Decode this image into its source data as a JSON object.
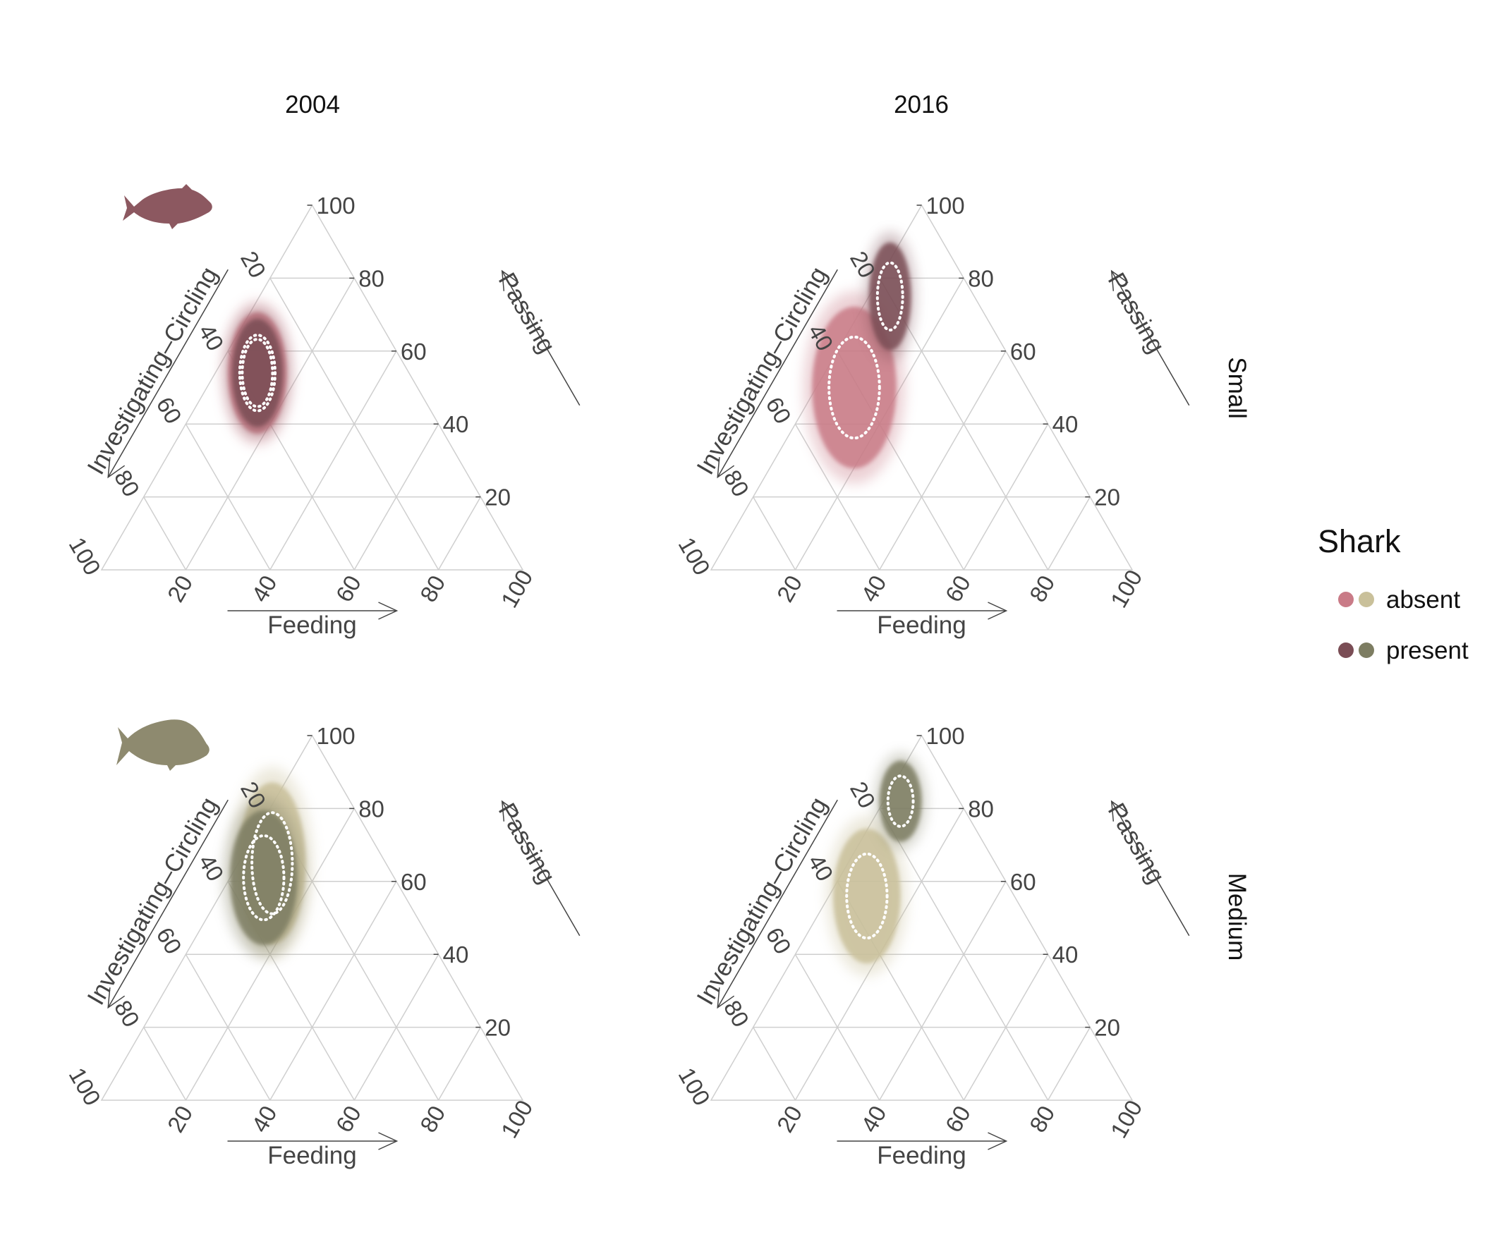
{
  "figure": {
    "col_titles": [
      "2004",
      "2016"
    ],
    "row_titles": [
      "Small",
      "Medium"
    ],
    "legend": {
      "title": "Shark",
      "entries": [
        {
          "label": "absent",
          "colors": [
            "#c97b87",
            "#c9c09a"
          ]
        },
        {
          "label": "present",
          "colors": [
            "#7a4d55",
            "#7d7d62"
          ]
        }
      ]
    },
    "fish_icons": [
      {
        "icon": "small-fish-silhouette-icon",
        "color": "#8c5860"
      },
      {
        "icon": "medium-fish-silhouette-icon",
        "color": "#8e8a6f"
      }
    ]
  },
  "chart_data": {
    "type": "ternary-density",
    "axes": {
      "top": {
        "label": "Passing",
        "ticks": [
          20,
          40,
          60,
          80,
          100
        ]
      },
      "left": {
        "label": "Investigating–Circling",
        "ticks": [
          20,
          40,
          60,
          80,
          100
        ]
      },
      "bottom": {
        "label": "Feeding",
        "ticks": [
          20,
          40,
          60,
          80,
          100
        ]
      }
    },
    "grid": true,
    "legend_position": "right",
    "panels": [
      {
        "year": "2004",
        "size": "Small",
        "series": [
          {
            "name": "absent",
            "color": "#c97b87",
            "center": {
              "Passing": 54,
              "Investigating–Circling": 36,
              "Feeding": 10
            },
            "spread": [
              3.5,
              9
            ]
          },
          {
            "name": "present",
            "color": "#7a4d55",
            "center": {
              "Passing": 54,
              "Investigating–Circling": 36,
              "Feeding": 10
            },
            "spread": [
              3,
              8
            ]
          }
        ]
      },
      {
        "year": "2016",
        "size": "Small",
        "series": [
          {
            "name": "absent",
            "color": "#c97b87",
            "center": {
              "Passing": 50,
              "Investigating–Circling": 41,
              "Feeding": 9
            },
            "spread": [
              5,
              12
            ]
          },
          {
            "name": "present",
            "color": "#7a4d55",
            "center": {
              "Passing": 75,
              "Investigating–Circling": 20,
              "Feeding": 5
            },
            "spread": [
              2.5,
              8
            ]
          }
        ]
      },
      {
        "year": "2004",
        "size": "Medium",
        "series": [
          {
            "name": "absent",
            "color": "#c9c09a",
            "center": {
              "Passing": 65,
              "Investigating–Circling": 27,
              "Feeding": 8
            },
            "spread": [
              4,
              12
            ]
          },
          {
            "name": "present",
            "color": "#7d7d62",
            "center": {
              "Passing": 61,
              "Investigating–Circling": 31,
              "Feeding": 8
            },
            "spread": [
              4,
              10
            ]
          }
        ]
      },
      {
        "year": "2016",
        "size": "Medium",
        "series": [
          {
            "name": "absent",
            "color": "#c9c09a",
            "center": {
              "Passing": 56,
              "Investigating–Circling": 35,
              "Feeding": 9
            },
            "spread": [
              4,
              10
            ]
          },
          {
            "name": "present",
            "color": "#7d7d62",
            "center": {
              "Passing": 82,
              "Investigating–Circling": 14,
              "Feeding": 4
            },
            "spread": [
              2.5,
              6
            ]
          }
        ]
      }
    ]
  }
}
